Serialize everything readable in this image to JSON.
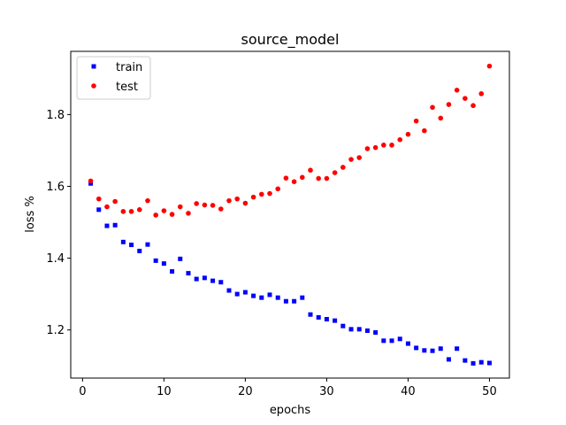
{
  "chart_data": {
    "type": "scatter",
    "title": "source_model",
    "xlabel": "epochs",
    "ylabel": "loss %",
    "xlim": [
      -1.45,
      52.45
    ],
    "ylim": [
      1.066,
      1.976
    ],
    "xticks": [
      0,
      10,
      20,
      30,
      40,
      50
    ],
    "yticks": [
      1.2,
      1.4,
      1.6,
      1.8
    ],
    "ytick_labels": [
      "1.2",
      "1.4",
      "1.6",
      "1.8"
    ],
    "grid": false,
    "legend_position": "top-left",
    "series": [
      {
        "name": "train",
        "color": "#0000ff",
        "marker": "square",
        "x": [
          1,
          2,
          3,
          4,
          5,
          6,
          7,
          8,
          9,
          10,
          11,
          12,
          13,
          14,
          15,
          16,
          17,
          18,
          19,
          20,
          21,
          22,
          23,
          24,
          25,
          26,
          27,
          28,
          29,
          30,
          31,
          32,
          33,
          34,
          35,
          36,
          37,
          38,
          39,
          40,
          41,
          42,
          43,
          44,
          45,
          46,
          47,
          48,
          49,
          50
        ],
        "y": [
          1.608,
          1.535,
          1.49,
          1.492,
          1.445,
          1.437,
          1.42,
          1.438,
          1.393,
          1.385,
          1.363,
          1.398,
          1.358,
          1.342,
          1.345,
          1.337,
          1.333,
          1.31,
          1.3,
          1.305,
          1.295,
          1.29,
          1.298,
          1.29,
          1.28,
          1.28,
          1.29,
          1.243,
          1.235,
          1.23,
          1.226,
          1.211,
          1.202,
          1.202,
          1.198,
          1.193,
          1.17,
          1.17,
          1.175,
          1.162,
          1.15,
          1.143,
          1.142,
          1.148,
          1.118,
          1.148,
          1.115,
          1.107,
          1.11,
          1.108
        ]
      },
      {
        "name": "test",
        "color": "#ff0000",
        "marker": "circle",
        "x": [
          1,
          2,
          3,
          4,
          5,
          6,
          7,
          8,
          9,
          10,
          11,
          12,
          13,
          14,
          15,
          16,
          17,
          18,
          19,
          20,
          21,
          22,
          23,
          24,
          25,
          26,
          27,
          28,
          29,
          30,
          31,
          32,
          33,
          34,
          35,
          36,
          37,
          38,
          39,
          40,
          41,
          42,
          43,
          44,
          45,
          46,
          47,
          48,
          49,
          50
        ],
        "y": [
          1.615,
          1.565,
          1.543,
          1.558,
          1.53,
          1.53,
          1.535,
          1.56,
          1.52,
          1.532,
          1.522,
          1.543,
          1.525,
          1.552,
          1.548,
          1.547,
          1.537,
          1.56,
          1.565,
          1.553,
          1.57,
          1.578,
          1.58,
          1.593,
          1.623,
          1.613,
          1.625,
          1.645,
          1.622,
          1.622,
          1.638,
          1.653,
          1.675,
          1.68,
          1.705,
          1.708,
          1.715,
          1.715,
          1.73,
          1.745,
          1.782,
          1.755,
          1.82,
          1.79,
          1.828,
          1.868,
          1.845,
          1.825,
          1.858,
          1.935
        ]
      }
    ]
  }
}
